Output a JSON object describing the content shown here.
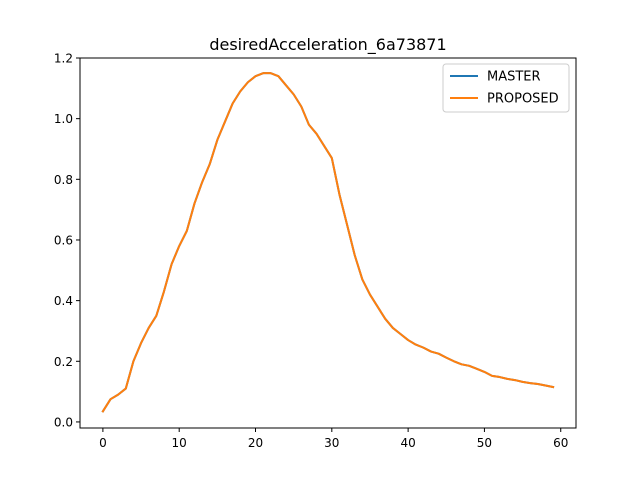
{
  "chart_data": {
    "type": "line",
    "title": "desiredAcceleration_6a73871",
    "xlabel": "",
    "ylabel": "",
    "xlim": [
      -3,
      62
    ],
    "ylim": [
      -0.02,
      1.2
    ],
    "xticks": [
      0,
      10,
      20,
      30,
      40,
      50,
      60
    ],
    "yticks": [
      0.0,
      0.2,
      0.4,
      0.6,
      0.8,
      1.0,
      1.2
    ],
    "grid": false,
    "legend_position": "upper right",
    "x": [
      0,
      1,
      2,
      3,
      4,
      5,
      6,
      7,
      8,
      9,
      10,
      11,
      12,
      13,
      14,
      15,
      16,
      17,
      18,
      19,
      20,
      21,
      22,
      23,
      24,
      25,
      26,
      27,
      28,
      29,
      30,
      31,
      32,
      33,
      34,
      35,
      36,
      37,
      38,
      39,
      40,
      41,
      42,
      43,
      44,
      45,
      46,
      47,
      48,
      49,
      50,
      51,
      52,
      53,
      54,
      55,
      56,
      57,
      58,
      59
    ],
    "series": [
      {
        "name": "MASTER",
        "color": "#1f77b4",
        "values": [
          0.035,
          0.075,
          0.09,
          0.11,
          0.2,
          0.26,
          0.31,
          0.35,
          0.43,
          0.52,
          0.58,
          0.63,
          0.72,
          0.79,
          0.85,
          0.93,
          0.99,
          1.05,
          1.09,
          1.12,
          1.14,
          1.15,
          1.15,
          1.14,
          1.11,
          1.08,
          1.04,
          0.98,
          0.95,
          0.91,
          0.87,
          0.75,
          0.65,
          0.55,
          0.47,
          0.42,
          0.38,
          0.34,
          0.31,
          0.29,
          0.27,
          0.255,
          0.245,
          0.232,
          0.225,
          0.212,
          0.2,
          0.19,
          0.185,
          0.175,
          0.165,
          0.152,
          0.148,
          0.142,
          0.138,
          0.132,
          0.128,
          0.125,
          0.12,
          0.115
        ]
      },
      {
        "name": "PROPOSED",
        "color": "#ff7f0e",
        "values": [
          0.035,
          0.075,
          0.09,
          0.11,
          0.2,
          0.26,
          0.31,
          0.35,
          0.43,
          0.52,
          0.58,
          0.63,
          0.72,
          0.79,
          0.85,
          0.93,
          0.99,
          1.05,
          1.09,
          1.12,
          1.14,
          1.15,
          1.15,
          1.14,
          1.11,
          1.08,
          1.04,
          0.98,
          0.95,
          0.91,
          0.87,
          0.75,
          0.65,
          0.55,
          0.47,
          0.42,
          0.38,
          0.34,
          0.31,
          0.29,
          0.27,
          0.255,
          0.245,
          0.232,
          0.225,
          0.212,
          0.2,
          0.19,
          0.185,
          0.175,
          0.165,
          0.152,
          0.148,
          0.142,
          0.138,
          0.132,
          0.128,
          0.125,
          0.12,
          0.115
        ]
      }
    ]
  }
}
